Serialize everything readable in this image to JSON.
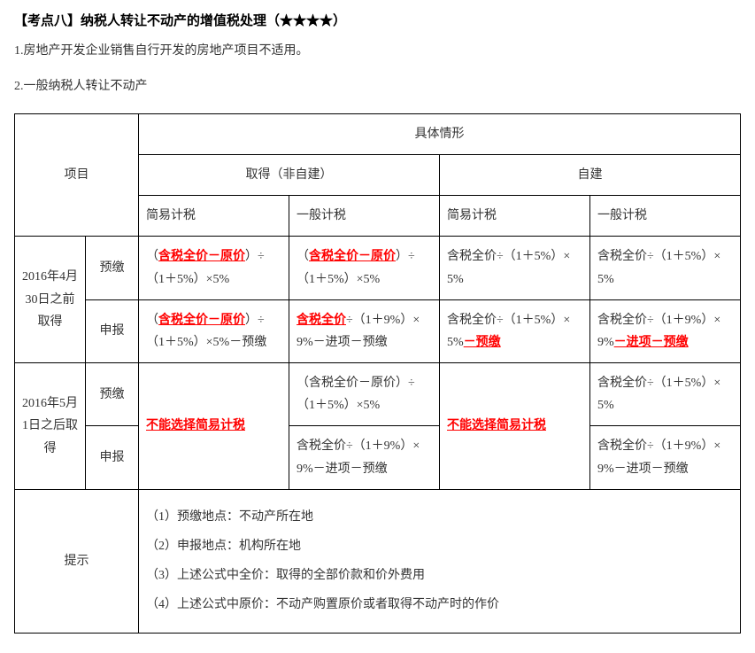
{
  "heading": "【考点八】纳税人转让不动产的增值税处理（★★★★）",
  "para1": "1.房地产开发企业销售自行开发的房地产项目不适用。",
  "para2": "2.一般纳税人转让不动产",
  "headers": {
    "project": "项目",
    "situation": "具体情形",
    "acquired": "取得（非自建）",
    "selfBuilt": "自建",
    "simpleTax": "简易计税",
    "generalTax": "一般计税"
  },
  "rows": {
    "period1": "2016年4月30日之前取得",
    "period2": "2016年5月1日之后取得",
    "prepay": "预缴",
    "declare": "申报",
    "tips": "提示"
  },
  "cells": {
    "r1c1_pre": "（",
    "r1c1_red": "含税全价－原价",
    "r1c1_post": "）÷（1＋5%）×5%",
    "r1c2_pre": "（",
    "r1c2_red": "含税全价－原价",
    "r1c2_post": "）÷（1＋5%）×5%",
    "r1c3": "含税全价÷（1＋5%）×5%",
    "r1c4": "含税全价÷（1＋5%）×5%",
    "r2c1_pre": "（",
    "r2c1_red": "含税全价－原价",
    "r2c1_post": "）÷（1＋5%）×5%－预缴",
    "r2c2_red": "含税全价",
    "r2c2_post": "÷（1＋9%）×9%－进项－预缴",
    "r2c3_pre": "含税全价÷（1＋5%）×5%",
    "r2c3_red": "－预缴",
    "r2c4_pre": "含税全价÷（1＋9%）×9%",
    "r2c4_red": "－进项－预缴",
    "r3c1_red": "不能选择简易计税",
    "r3c2": "（含税全价－原价）÷（1＋5%）×5%",
    "r3c3_red": "不能选择简易计税",
    "r3c4": "含税全价÷（1＋5%）×5%",
    "r4c2": "含税全价÷（1＋9%）×9%－进项－预缴",
    "r4c4": "含税全价÷（1＋9%）×9%－进项－预缴"
  },
  "tips": {
    "t1": "（1）预缴地点：不动产所在地",
    "t2": "（2）申报地点：机构所在地",
    "t3": "（3）上述公式中全价：取得的全部价款和价外费用",
    "t4": "（4）上述公式中原价：不动产购置原价或者取得不动产时的作价"
  },
  "colors": {
    "text": "#333333",
    "border": "#000000",
    "emphasis": "#ff0000",
    "background": "#ffffff"
  },
  "typography": {
    "base_fontsize": 14,
    "heading_fontsize": 15,
    "line_height": 1.8
  }
}
